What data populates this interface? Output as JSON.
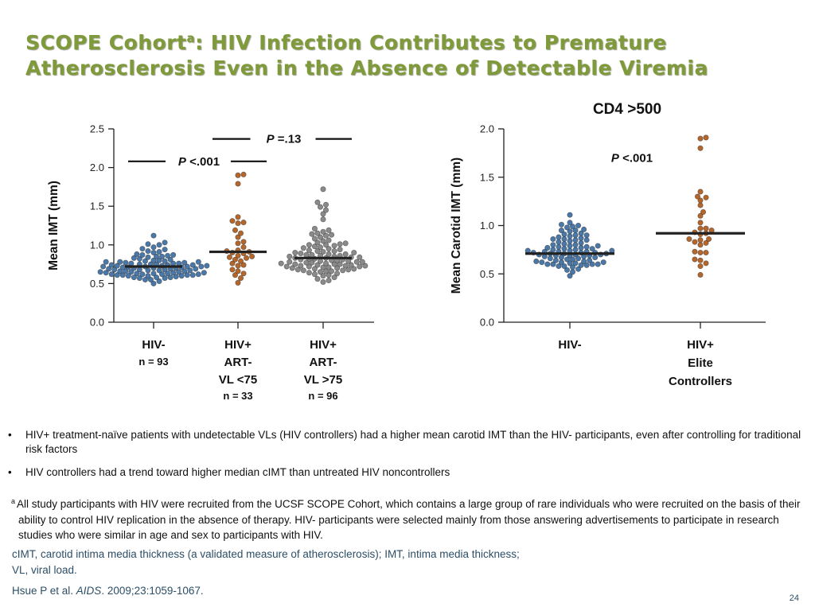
{
  "slide": {
    "title_part1": "SCOPE Cohort",
    "title_sup": "a",
    "title_part2": ": HIV Infection Contributes to Premature",
    "title_line2": "Atherosclerosis Even in the Absence of Detectable Viremia",
    "page_number": "24"
  },
  "colors": {
    "title": "#7f9a3a",
    "hiv_negative": "#4a78a8",
    "hiv_controllers": "#b5662a",
    "hiv_noncontrollers": "#8a8a8a",
    "median_line": "#222222",
    "footer_text": "#2c4e66"
  },
  "chart_data": [
    {
      "type": "scatter",
      "subtype": "dot-plot",
      "title": "",
      "ylabel": "Mean IMT (mm)",
      "ylim": [
        0,
        2.5
      ],
      "yticks": [
        "0.0",
        "0.5",
        "1.0",
        "1.5",
        "2.0",
        "2.5"
      ],
      "grid": false,
      "categories": [
        {
          "lines": [
            "HIV-"
          ],
          "n": "n = 93"
        },
        {
          "lines": [
            "HIV+",
            "ART-",
            "VL <75"
          ],
          "n": "n = 33"
        },
        {
          "lines": [
            "HIV+",
            "ART-",
            "VL >75"
          ],
          "n": "n = 96"
        }
      ],
      "series": [
        {
          "name": "HIV-",
          "color_key": "hiv_negative",
          "n": 93,
          "median": 0.72,
          "values": [
            0.5,
            0.53,
            0.55,
            0.55,
            0.57,
            0.57,
            0.58,
            0.58,
            0.58,
            0.59,
            0.6,
            0.6,
            0.6,
            0.61,
            0.61,
            0.61,
            0.61,
            0.62,
            0.62,
            0.62,
            0.62,
            0.63,
            0.63,
            0.63,
            0.64,
            0.64,
            0.64,
            0.65,
            0.65,
            0.65,
            0.66,
            0.66,
            0.66,
            0.67,
            0.67,
            0.67,
            0.68,
            0.68,
            0.68,
            0.69,
            0.69,
            0.69,
            0.7,
            0.7,
            0.7,
            0.71,
            0.71,
            0.71,
            0.72,
            0.72,
            0.72,
            0.72,
            0.73,
            0.73,
            0.73,
            0.74,
            0.74,
            0.74,
            0.75,
            0.75,
            0.75,
            0.76,
            0.76,
            0.76,
            0.77,
            0.77,
            0.78,
            0.78,
            0.78,
            0.79,
            0.79,
            0.8,
            0.8,
            0.81,
            0.82,
            0.83,
            0.84,
            0.85,
            0.85,
            0.86,
            0.87,
            0.87,
            0.88,
            0.9,
            0.91,
            0.92,
            0.94,
            0.95,
            0.97,
            1.0,
            1.01,
            1.03,
            1.12
          ]
        },
        {
          "name": "HIV+ ART- VL <75",
          "color_key": "hiv_controllers",
          "n": 33,
          "median": 0.91,
          "values": [
            0.51,
            0.57,
            0.61,
            0.63,
            0.66,
            0.68,
            0.73,
            0.74,
            0.76,
            0.79,
            0.81,
            0.83,
            0.84,
            0.85,
            0.86,
            0.89,
            0.9,
            0.91,
            0.92,
            0.93,
            0.97,
            1.02,
            1.04,
            1.1,
            1.15,
            1.19,
            1.28,
            1.29,
            1.31,
            1.36,
            1.79,
            1.9,
            1.91
          ]
        },
        {
          "name": "HIV+ ART- VL >75",
          "color_key": "hiv_noncontrollers",
          "n": 96,
          "median": 0.83,
          "values": [
            0.52,
            0.54,
            0.56,
            0.58,
            0.6,
            0.61,
            0.62,
            0.63,
            0.64,
            0.65,
            0.66,
            0.66,
            0.67,
            0.67,
            0.68,
            0.68,
            0.69,
            0.69,
            0.7,
            0.7,
            0.71,
            0.71,
            0.72,
            0.72,
            0.72,
            0.73,
            0.73,
            0.73,
            0.74,
            0.74,
            0.75,
            0.75,
            0.75,
            0.76,
            0.76,
            0.77,
            0.77,
            0.78,
            0.78,
            0.78,
            0.79,
            0.79,
            0.8,
            0.8,
            0.81,
            0.81,
            0.82,
            0.82,
            0.83,
            0.83,
            0.84,
            0.84,
            0.85,
            0.85,
            0.86,
            0.86,
            0.87,
            0.87,
            0.88,
            0.88,
            0.89,
            0.9,
            0.9,
            0.91,
            0.92,
            0.92,
            0.93,
            0.94,
            0.95,
            0.96,
            0.97,
            0.98,
            0.99,
            1.0,
            1.0,
            1.01,
            1.02,
            1.03,
            1.05,
            1.06,
            1.08,
            1.1,
            1.12,
            1.13,
            1.14,
            1.15,
            1.17,
            1.19,
            1.21,
            1.33,
            1.4,
            1.45,
            1.49,
            1.52,
            1.55,
            1.72
          ]
        }
      ],
      "annotations": [
        {
          "text_italic": "P",
          "text": " <.001",
          "from": 0,
          "to": 1,
          "y": 2.08
        },
        {
          "text_italic": "P",
          "text": " =.13",
          "from": 1,
          "to": 2,
          "y": 2.37
        }
      ]
    },
    {
      "type": "scatter",
      "subtype": "dot-plot",
      "title": "CD4 >500",
      "ylabel": "Mean Carotid IMT (mm)",
      "ylim": [
        0,
        2.0
      ],
      "yticks": [
        "0.0",
        "0.5",
        "1.0",
        "1.5",
        "2.0"
      ],
      "grid": false,
      "categories": [
        {
          "lines": [
            "HIV-"
          ],
          "n": ""
        },
        {
          "lines": [
            "HIV+",
            "Elite",
            "Controllers"
          ],
          "n": ""
        }
      ],
      "series": [
        {
          "name": "HIV-",
          "color_key": "hiv_negative",
          "median": 0.71,
          "values": [
            0.48,
            0.52,
            0.54,
            0.55,
            0.57,
            0.58,
            0.58,
            0.59,
            0.59,
            0.6,
            0.6,
            0.6,
            0.6,
            0.61,
            0.61,
            0.62,
            0.62,
            0.62,
            0.63,
            0.63,
            0.64,
            0.64,
            0.65,
            0.65,
            0.66,
            0.66,
            0.67,
            0.67,
            0.68,
            0.68,
            0.69,
            0.69,
            0.69,
            0.7,
            0.7,
            0.7,
            0.71,
            0.71,
            0.71,
            0.72,
            0.72,
            0.72,
            0.73,
            0.73,
            0.73,
            0.74,
            0.74,
            0.74,
            0.75,
            0.75,
            0.76,
            0.76,
            0.77,
            0.77,
            0.78,
            0.78,
            0.79,
            0.79,
            0.8,
            0.8,
            0.81,
            0.82,
            0.83,
            0.84,
            0.85,
            0.85,
            0.86,
            0.86,
            0.87,
            0.88,
            0.89,
            0.9,
            0.9,
            0.91,
            0.92,
            0.94,
            0.95,
            0.95,
            0.96,
            0.98,
            0.99,
            1.0,
            1.01,
            1.03,
            1.11
          ]
        },
        {
          "name": "HIV+ Elite Controllers",
          "color_key": "hiv_controllers",
          "median": 0.92,
          "values": [
            0.49,
            0.58,
            0.61,
            0.64,
            0.65,
            0.72,
            0.72,
            0.73,
            0.8,
            0.82,
            0.83,
            0.85,
            0.86,
            0.86,
            0.91,
            0.92,
            0.93,
            0.95,
            0.97,
            0.97,
            1.03,
            1.1,
            1.14,
            1.21,
            1.26,
            1.29,
            1.3,
            1.35,
            1.8,
            1.9,
            1.91
          ]
        }
      ],
      "annotations": [
        {
          "text_italic": "P",
          "text": " <.001",
          "x_between": [
            0,
            1
          ],
          "y": 1.7
        }
      ]
    }
  ],
  "bullets": [
    "HIV+ treatment-naïve patients with undetectable VLs (HIV controllers) had a higher mean carotid IMT than the HIV- participants, even after controlling for traditional risk factors",
    "HIV controllers had a trend toward higher median cIMT than untreated HIV noncontrollers"
  ],
  "bullet_glyph": "•",
  "footnote": {
    "marker": "a",
    "text": "All study participants with HIV were recruited from the UCSF SCOPE Cohort, which contains a large group of rare individuals who were recruited on the basis of their ability to control HIV replication in the absence of therapy. HIV- participants were selected mainly from those answering  advertisements to participate in research studies who were similar in age and sex to participants with HIV."
  },
  "abbreviations": {
    "line1": "cIMT, carotid intima media thickness (a validated measure of atherosclerosis); IMT, intima media thickness;",
    "line2": "VL, viral load."
  },
  "citation": {
    "authors": "Hsue P et al. ",
    "journal": "AIDS",
    "details": ". 2009;23:1059-1067."
  }
}
